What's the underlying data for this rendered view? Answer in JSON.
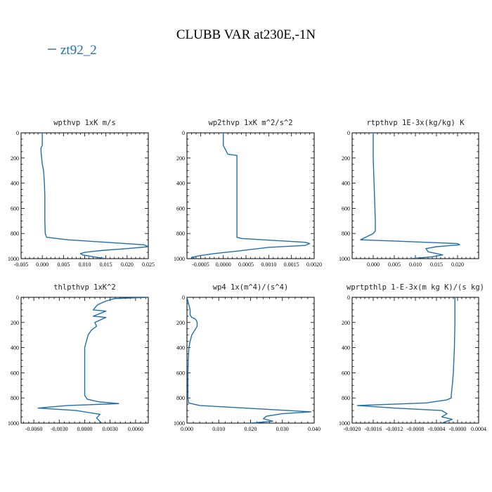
{
  "figure": {
    "title": "CLUBB VAR at230E,-1N",
    "legend_label": "zt92_2",
    "line_color": "#1f6fad"
  },
  "chart_data": [
    {
      "type": "line",
      "title": "wpthvp  1xK m/s",
      "xlim": [
        -0.005,
        0.025
      ],
      "ylim": [
        1000,
        0
      ],
      "xticks": [
        -0.005,
        0.0,
        0.005,
        0.01,
        0.015,
        0.02,
        0.025
      ],
      "xtick_labels": [
        "-0.005",
        "0.000",
        "0.005",
        "0.010",
        "0.015",
        "0.020",
        "0.025"
      ],
      "yticks": [
        0,
        200,
        400,
        600,
        800,
        1000
      ],
      "ytick_labels": [
        "0",
        "200",
        "400",
        "600",
        "800",
        "1000"
      ],
      "series": [
        {
          "name": "zt92_2",
          "x": [
            0.0,
            0.0,
            -0.0003,
            -0.0003,
            0.0,
            0.0003,
            0.0005,
            0.0006,
            0.0006,
            0.0006,
            0.0007,
            0.001,
            0.006,
            0.015,
            0.024,
            0.025,
            0.02,
            0.014,
            0.01,
            0.009,
            0.0095,
            0.012,
            0.015
          ],
          "y": [
            0,
            100,
            120,
            150,
            250,
            300,
            400,
            500,
            600,
            700,
            800,
            830,
            850,
            870,
            890,
            905,
            920,
            935,
            950,
            960,
            970,
            985,
            1000
          ]
        }
      ]
    },
    {
      "type": "line",
      "title": "wp2thvp  1xK m^2/s^2",
      "xlim": [
        -0.0008,
        0.002
      ],
      "ylim": [
        1000,
        0
      ],
      "xticks": [
        -0.0005,
        0.0,
        0.0005,
        0.001,
        0.0015,
        0.002
      ],
      "xtick_labels": [
        "-0.0005",
        "0.0000",
        "0.0005",
        "0.0010",
        "0.0015",
        "0.0020"
      ],
      "yticks": [
        0,
        200,
        400,
        600,
        800,
        1000
      ],
      "ytick_labels": [
        "0",
        "200",
        "400",
        "600",
        "800",
        "1000"
      ],
      "series": [
        {
          "name": "zt92_2",
          "x": [
            0.0,
            0.0,
            0.0001,
            0.0003,
            0.0003,
            0.0003,
            0.0003,
            0.0003,
            0.0003,
            0.0004,
            0.0018,
            0.0019,
            0.0018,
            0.001,
            0.0003,
            -0.0002,
            -0.0005,
            -0.0007,
            -0.0006
          ],
          "y": [
            0,
            100,
            170,
            180,
            200,
            300,
            500,
            700,
            830,
            840,
            870,
            880,
            895,
            910,
            940,
            960,
            975,
            990,
            1000
          ]
        }
      ]
    },
    {
      "type": "line",
      "title": "rtpthvp  1E-3x(kg/kg) K",
      "xlim": [
        -0.005,
        0.025
      ],
      "ylim": [
        1000,
        0
      ],
      "xticks": [
        0.0,
        0.005,
        0.01,
        0.015,
        0.02
      ],
      "xtick_labels": [
        "0.000",
        "0.005",
        "0.010",
        "0.015",
        "0.020"
      ],
      "yticks": [
        0,
        200,
        400,
        600,
        800,
        1000
      ],
      "ytick_labels": [
        "0",
        "200",
        "400",
        "600",
        "800",
        "1000"
      ],
      "series": [
        {
          "name": "zt92_2",
          "x": [
            0.0,
            0.0,
            0.0002,
            0.0003,
            0.0004,
            0.0005,
            0.0005,
            0.0,
            -0.003,
            0.005,
            0.02,
            0.0205,
            0.015,
            0.0125,
            0.013,
            0.0165,
            0.014,
            0.009
          ],
          "y": [
            0,
            200,
            400,
            500,
            600,
            700,
            780,
            800,
            850,
            860,
            880,
            890,
            905,
            920,
            945,
            970,
            985,
            1000
          ]
        }
      ]
    },
    {
      "type": "line",
      "title": "thlpthvp  1xK^2",
      "xlim": [
        -0.0075,
        0.0075
      ],
      "ylim": [
        1000,
        0
      ],
      "xticks": [
        -0.006,
        -0.003,
        0.0,
        0.003,
        0.006
      ],
      "xtick_labels": [
        "-0.0060",
        "-0.0030",
        "0.0000",
        "0.0030",
        "0.0060"
      ],
      "yticks": [
        0,
        200,
        400,
        600,
        800,
        1000
      ],
      "ytick_labels": [
        "0",
        "200",
        "400",
        "600",
        "800",
        "1000"
      ],
      "series": [
        {
          "name": "zt92_2",
          "x": [
            0.0075,
            0.0035,
            0.0025,
            0.0015,
            0.001,
            0.0025,
            0.001,
            0.0025,
            0.0012,
            0.0014,
            0.0008,
            0.0004,
            0.0002,
            0.0,
            0.0,
            0.0,
            0.0,
            0.0003,
            0.0016,
            0.004,
            -0.002,
            -0.0055,
            -0.001,
            0.0018,
            0.0014,
            0.002
          ],
          "y": [
            0,
            10,
            30,
            60,
            100,
            110,
            150,
            160,
            200,
            230,
            260,
            300,
            350,
            400,
            500,
            600,
            780,
            810,
            830,
            845,
            860,
            880,
            900,
            930,
            960,
            1000
          ]
        }
      ]
    },
    {
      "type": "line",
      "title": "wp4  1x(m^4)/(s^4)",
      "xlim": [
        0.0,
        0.04
      ],
      "ylim": [
        1000,
        0
      ],
      "xticks": [
        0.0,
        0.01,
        0.02,
        0.03,
        0.04
      ],
      "xtick_labels": [
        "0.000",
        "0.010",
        "0.020",
        "0.030",
        "0.040"
      ],
      "yticks": [
        0,
        200,
        400,
        600,
        800,
        1000
      ],
      "ytick_labels": [
        "0",
        "200",
        "400",
        "600",
        "800",
        "1000"
      ],
      "series": [
        {
          "name": "zt92_2",
          "x": [
            0.0,
            0.0005,
            0.001,
            0.001,
            0.0015,
            0.0025,
            0.003,
            0.0032,
            0.0032,
            0.0025,
            0.0015,
            0.001,
            0.0006,
            0.0004,
            0.0003,
            0.0003,
            0.0003,
            0.0005,
            0.004,
            0.025,
            0.039,
            0.03,
            0.025,
            0.024,
            0.027,
            0.02
          ],
          "y": [
            0,
            50,
            100,
            140,
            160,
            170,
            185,
            200,
            230,
            260,
            300,
            350,
            400,
            500,
            600,
            700,
            800,
            840,
            860,
            890,
            910,
            925,
            945,
            965,
            985,
            1000
          ]
        }
      ]
    },
    {
      "type": "line",
      "title": "wprtpthlp  1-E-3x(m kg K)/(s kg)",
      "xlim": [
        -0.002,
        0.0004
      ],
      "ylim": [
        1000,
        0
      ],
      "xticks": [
        -0.002,
        -0.0016,
        -0.0012,
        -0.0008,
        -0.0004,
        0.0,
        0.0004
      ],
      "xtick_labels": [
        "-0.0020",
        "-0.0016",
        "-0.0012",
        "-0.0008",
        "-0.0004",
        "-0.0000",
        "0.0004"
      ],
      "yticks": [
        0,
        200,
        400,
        600,
        800,
        1000
      ],
      "ytick_labels": [
        "0",
        "200",
        "400",
        "600",
        "800",
        "1000"
      ],
      "series": [
        {
          "name": "zt92_2",
          "x": [
            -5e-05,
            -5e-05,
            -6e-05,
            -8e-05,
            -0.0001,
            -0.00012,
            -0.00012,
            -0.0002,
            -0.0006,
            -0.0019,
            -0.0012,
            -0.0003,
            -0.0002,
            -0.0003,
            -0.0001,
            -0.0002,
            -0.0003
          ],
          "y": [
            0,
            200,
            400,
            600,
            700,
            780,
            800,
            815,
            840,
            860,
            880,
            900,
            925,
            950,
            970,
            985,
            1000
          ]
        }
      ]
    }
  ]
}
